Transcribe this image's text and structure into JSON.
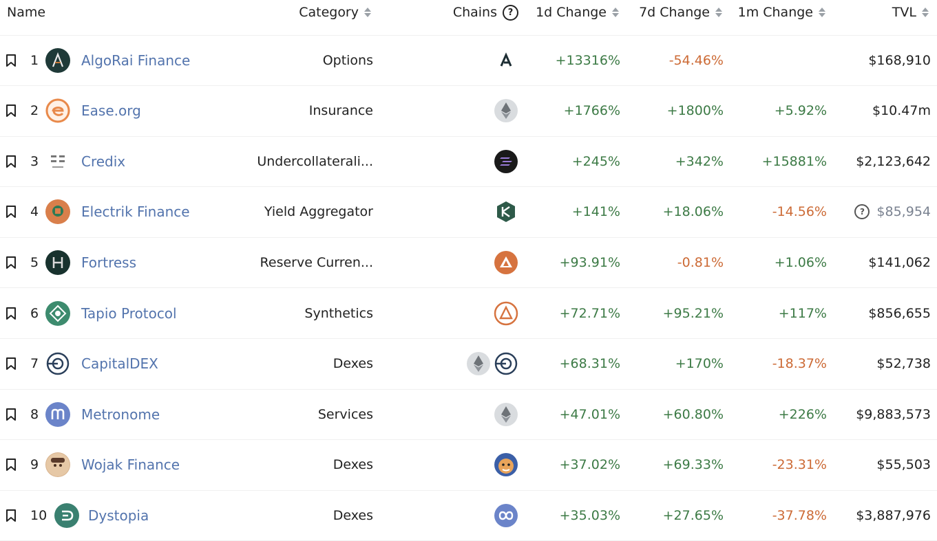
{
  "columns": {
    "name": "Name",
    "category": "Category",
    "chains": "Chains",
    "change_1d": "1d Change",
    "change_7d": "7d Change",
    "change_1m": "1m Change",
    "tvl": "TVL"
  },
  "colors": {
    "link": "#5374ad",
    "positive": "#3c7a45",
    "negative": "#cc6a35"
  },
  "rows": [
    {
      "rank": "1",
      "name": "AlgoRai Finance",
      "category": "Options",
      "chains": [
        "algorand-icon"
      ],
      "change_1d": "+13316%",
      "change_7d": "-54.46%",
      "change_1m": "",
      "tvl": "$168,910"
    },
    {
      "rank": "2",
      "name": "Ease.org",
      "category": "Insurance",
      "chains": [
        "ethereum-icon"
      ],
      "change_1d": "+1766%",
      "change_7d": "+1800%",
      "change_1m": "+5.92%",
      "tvl": "$10.47m"
    },
    {
      "rank": "3",
      "name": "Credix",
      "category": "Undercollaterali...",
      "chains": [
        "solana-icon"
      ],
      "change_1d": "+245%",
      "change_7d": "+342%",
      "change_1m": "+15881%",
      "tvl": "$2,123,642"
    },
    {
      "rank": "4",
      "name": "Electrik Finance",
      "category": "Yield Aggregator",
      "chains": [
        "kava-icon"
      ],
      "change_1d": "+141%",
      "change_7d": "+18.06%",
      "change_1m": "-14.56%",
      "tvl": "$85,954"
    },
    {
      "rank": "5",
      "name": "Fortress",
      "category": "Reserve Curren...",
      "chains": [
        "avalanche-icon"
      ],
      "change_1d": "+93.91%",
      "change_7d": "-0.81%",
      "change_1m": "+1.06%",
      "tvl": "$141,062"
    },
    {
      "rank": "6",
      "name": "Tapio Protocol",
      "category": "Synthetics",
      "chains": [
        "acala-icon"
      ],
      "change_1d": "+72.71%",
      "change_7d": "+95.21%",
      "change_1m": "+117%",
      "tvl": "$856,655"
    },
    {
      "rank": "7",
      "name": "CapitalDEX",
      "category": "Dexes",
      "chains": [
        "ethereum-icon",
        "capitaldex-chain-icon"
      ],
      "change_1d": "+68.31%",
      "change_7d": "+170%",
      "change_1m": "-18.37%",
      "tvl": "$52,738"
    },
    {
      "rank": "8",
      "name": "Metronome",
      "category": "Services",
      "chains": [
        "ethereum-icon"
      ],
      "change_1d": "+47.01%",
      "change_7d": "+60.80%",
      "change_1m": "+226%",
      "tvl": "$9,883,573"
    },
    {
      "rank": "9",
      "name": "Wojak Finance",
      "category": "Dexes",
      "chains": [
        "dogechain-icon"
      ],
      "change_1d": "+37.02%",
      "change_7d": "+69.33%",
      "change_1m": "-23.31%",
      "tvl": "$55,503"
    },
    {
      "rank": "10",
      "name": "Dystopia",
      "category": "Dexes",
      "chains": [
        "polygon-icon"
      ],
      "change_1d": "+35.03%",
      "change_7d": "+27.65%",
      "change_1m": "-37.78%",
      "tvl": "$3,887,976"
    }
  ]
}
